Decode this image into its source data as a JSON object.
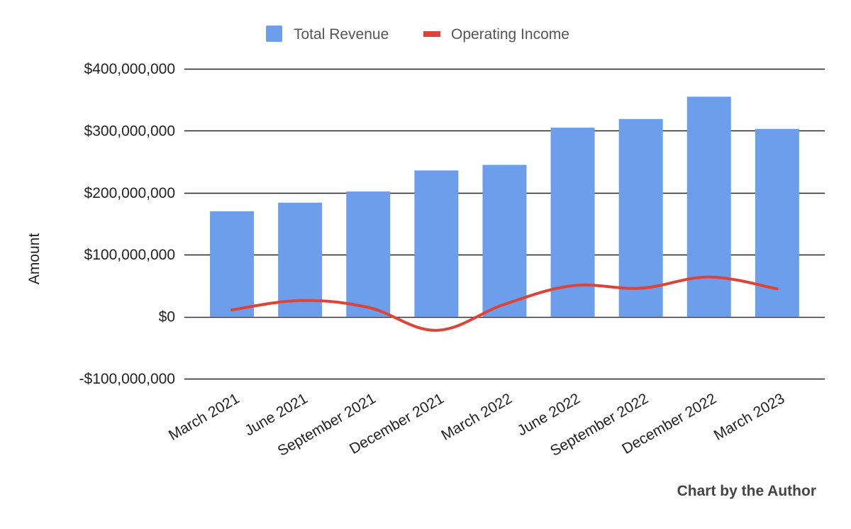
{
  "chart_data": {
    "type": "bar",
    "title": "",
    "xlabel": "",
    "ylabel": "Amount",
    "ylim": [
      -100000000,
      400000000
    ],
    "yticks": [
      400000000,
      300000000,
      200000000,
      100000000,
      0,
      -100000000
    ],
    "ytick_labels": [
      "$400,000,000",
      "$300,000,000",
      "$200,000,000",
      "$100,000,000",
      "$0",
      "-$100,000,000"
    ],
    "categories": [
      "March 2021",
      "June 2021",
      "September 2021",
      "December 2021",
      "March 2022",
      "June 2022",
      "September 2022",
      "December 2022",
      "March 2023"
    ],
    "series": [
      {
        "name": "Total Revenue",
        "type": "bar",
        "color": "#6d9eeb",
        "values": [
          170000000,
          184000000,
          202000000,
          236000000,
          245000000,
          305000000,
          319000000,
          355000000,
          303000000
        ]
      },
      {
        "name": "Operating Income",
        "type": "line",
        "color": "#db4437",
        "values": [
          11000000,
          26000000,
          15000000,
          -22000000,
          20000000,
          50000000,
          46000000,
          64000000,
          45000000
        ]
      }
    ],
    "legend": {
      "position": "top-center",
      "items": [
        "Total Revenue",
        "Operating Income"
      ]
    },
    "grid": true,
    "annotation": "Chart by the Author"
  }
}
